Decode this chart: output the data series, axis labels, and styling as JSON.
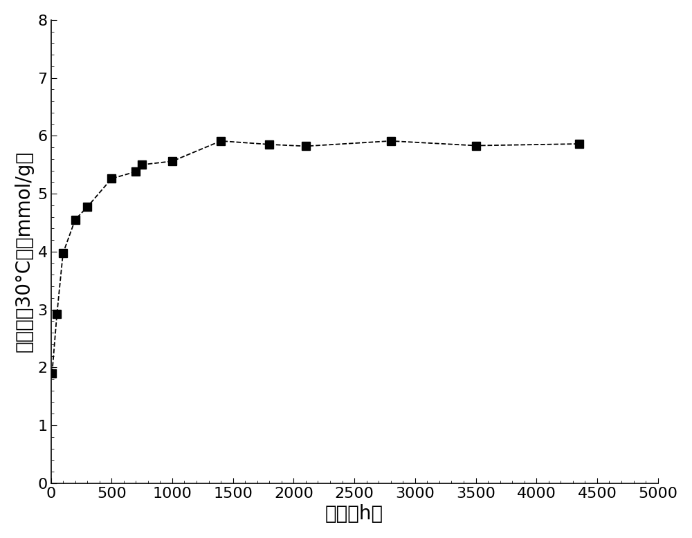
{
  "x": [
    10,
    50,
    100,
    200,
    300,
    500,
    700,
    750,
    1000,
    1400,
    1800,
    2100,
    2800,
    3500,
    4350
  ],
  "y": [
    1.9,
    2.92,
    3.97,
    4.55,
    4.77,
    5.26,
    5.38,
    5.5,
    5.56,
    5.91,
    5.85,
    5.82,
    5.91,
    5.83,
    5.86
  ],
  "xlim": [
    0,
    5000
  ],
  "ylim": [
    0,
    8
  ],
  "xticks": [
    0,
    500,
    1000,
    1500,
    2000,
    2500,
    3000,
    3500,
    4000,
    4500,
    5000
  ],
  "yticks": [
    0,
    1,
    2,
    3,
    4,
    5,
    6,
    7,
    8
  ],
  "xlabel": "时间（h）",
  "ylabel_line1": "吸附量（30°C）（mmol/g）",
  "line_color": "#000000",
  "marker": "s",
  "marker_size": 8,
  "line_style": "--",
  "background_color": "#ffffff",
  "fig_width": 10.0,
  "fig_height": 7.78,
  "xlabel_fontsize": 20,
  "ylabel_fontsize": 20,
  "tick_fontsize": 16,
  "minor_tick_count": 4
}
